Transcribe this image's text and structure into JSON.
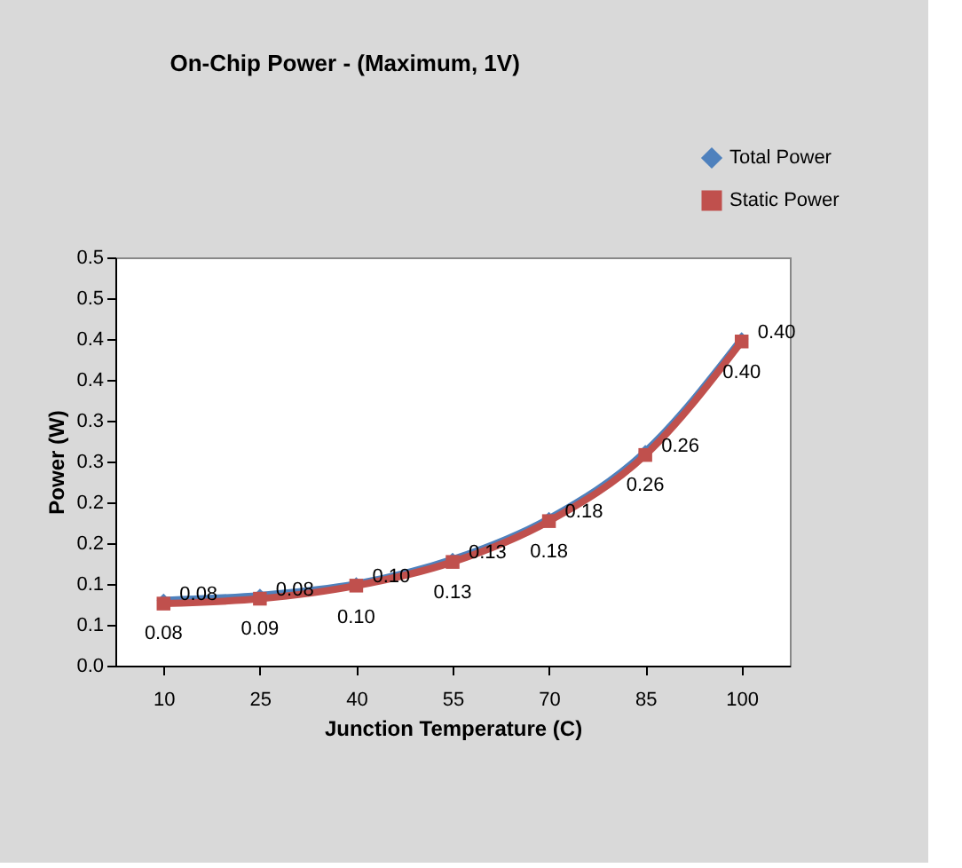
{
  "chart_data": {
    "type": "line",
    "title": "On-Chip Power - (Maximum, 1V)",
    "xlabel": "Junction Temperature (C)",
    "ylabel": "Power (W)",
    "categories": [
      "10",
      "25",
      "40",
      "55",
      "70",
      "85",
      "100"
    ],
    "series": [
      {
        "name": "Total Power",
        "color": "#4f81bd",
        "marker": "diamond",
        "values": [
          0.08,
          0.086,
          0.1,
          0.13,
          0.18,
          0.262,
          0.4
        ],
        "value_labels": [
          "0.08",
          "0.09",
          "0.10",
          "0.13",
          "0.18",
          "0.26",
          "0.40"
        ]
      },
      {
        "name": "Static Power",
        "color": "#c0504d",
        "marker": "square",
        "values": [
          0.076,
          0.082,
          0.098,
          0.127,
          0.177,
          0.258,
          0.397
        ],
        "value_labels": [
          "0.08",
          "0.08",
          "0.10",
          "0.13",
          "0.18",
          "0.26",
          "0.40"
        ]
      }
    ],
    "ylim": [
      0,
      0.5
    ],
    "yticks": [
      {
        "value": 0,
        "label": "0.0"
      },
      {
        "value": 0.05,
        "label": "0.1"
      },
      {
        "value": 0.1,
        "label": "0.1"
      },
      {
        "value": 0.15,
        "label": "0.2"
      },
      {
        "value": 0.2,
        "label": "0.2"
      },
      {
        "value": 0.25,
        "label": "0.3"
      },
      {
        "value": 0.3,
        "label": "0.3"
      },
      {
        "value": 0.35,
        "label": "0.4"
      },
      {
        "value": 0.4,
        "label": "0.4"
      },
      {
        "value": 0.45,
        "label": "0.5"
      },
      {
        "value": 0.5,
        "label": "0.5"
      }
    ],
    "legend": "top right"
  }
}
